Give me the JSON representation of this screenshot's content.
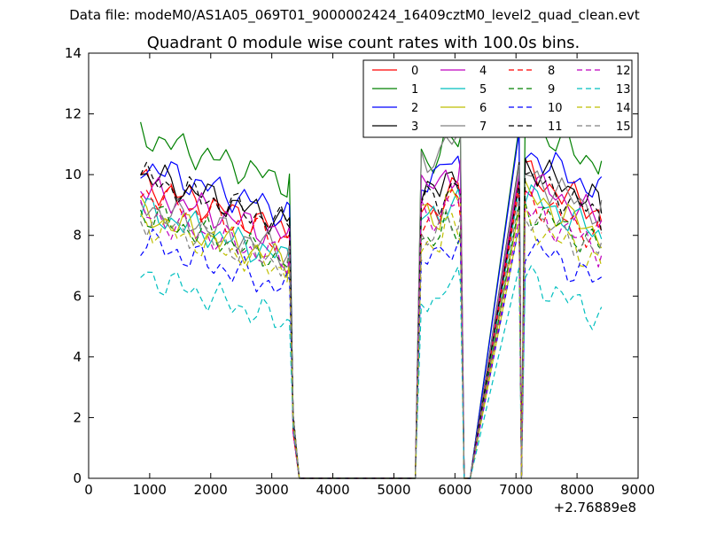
{
  "figure": {
    "suptitle": "Data file: modeM0/AS1A05_069T01_9000002424_16409cztM0_level2_quad_clean.evt"
  },
  "chart_data": {
    "type": "line",
    "title": "Quadrant 0 module wise count rates with 100.0s bins.",
    "xlabel": "",
    "ylabel": "",
    "x_offset_label": "+2.76889e8",
    "xlim": [
      0,
      9000
    ],
    "ylim": [
      0,
      14
    ],
    "xticks": [
      0,
      1000,
      2000,
      3000,
      4000,
      5000,
      6000,
      7000,
      8000,
      9000
    ],
    "yticks": [
      0,
      2,
      4,
      6,
      8,
      10,
      12,
      14
    ],
    "grid": false,
    "legend_position": "top-right",
    "x": [
      850,
      950,
      1050,
      1150,
      1250,
      1350,
      1450,
      1550,
      1650,
      1750,
      1850,
      1950,
      2050,
      2150,
      2250,
      2350,
      2450,
      2550,
      2650,
      2750,
      2850,
      2950,
      3050,
      3150,
      3250,
      3290,
      3350,
      3450,
      5350,
      5450,
      5550,
      5650,
      5750,
      5850,
      5950,
      6050,
      6090,
      6150,
      6250,
      7050,
      7090,
      7150,
      7250,
      7350,
      7450,
      7550,
      7650,
      7750,
      7850,
      7950,
      8050,
      8150,
      8250,
      8350,
      8400
    ],
    "series": [
      {
        "name": "0",
        "color": "#ff0000",
        "style": "solid"
      },
      {
        "name": "1",
        "color": "#008000",
        "style": "solid"
      },
      {
        "name": "2",
        "color": "#0000ff",
        "style": "solid"
      },
      {
        "name": "3",
        "color": "#000000",
        "style": "solid"
      },
      {
        "name": "4",
        "color": "#bf00bf",
        "style": "solid"
      },
      {
        "name": "5",
        "color": "#00bfbf",
        "style": "solid"
      },
      {
        "name": "6",
        "color": "#bfbf00",
        "style": "solid"
      },
      {
        "name": "7",
        "color": "#808080",
        "style": "solid"
      },
      {
        "name": "8",
        "color": "#ff0000",
        "style": "dashed"
      },
      {
        "name": "9",
        "color": "#008000",
        "style": "dashed"
      },
      {
        "name": "10",
        "color": "#0000ff",
        "style": "dashed"
      },
      {
        "name": "11",
        "color": "#000000",
        "style": "dashed"
      },
      {
        "name": "12",
        "color": "#bf00bf",
        "style": "dashed"
      },
      {
        "name": "13",
        "color": "#00bfbf",
        "style": "dashed"
      },
      {
        "name": "14",
        "color": "#bfbf00",
        "style": "dashed"
      },
      {
        "name": "15",
        "color": "#808080",
        "style": "dashed"
      }
    ],
    "segment_means": [
      [
        8.6,
        8.9,
        9.6
      ],
      [
        10.2,
        10.6,
        11.2
      ],
      [
        9.2,
        9.9,
        10.3
      ],
      [
        8.9,
        9.4,
        9.9
      ],
      [
        8.4,
        9.6,
        9.4
      ],
      [
        7.7,
        8.6,
        8.9
      ],
      [
        7.6,
        8.7,
        8.9
      ],
      [
        7.9,
        10.6,
        9.6
      ],
      [
        8.3,
        8.6,
        8.8
      ],
      [
        7.6,
        7.8,
        8.5
      ],
      [
        6.7,
        7.2,
        7.3
      ],
      [
        8.8,
        9.1,
        9.5
      ],
      [
        7.6,
        8.6,
        8.4
      ],
      [
        5.6,
        5.9,
        6.2
      ],
      [
        7.3,
        7.7,
        8.0
      ],
      [
        7.5,
        8.0,
        8.3
      ]
    ]
  }
}
